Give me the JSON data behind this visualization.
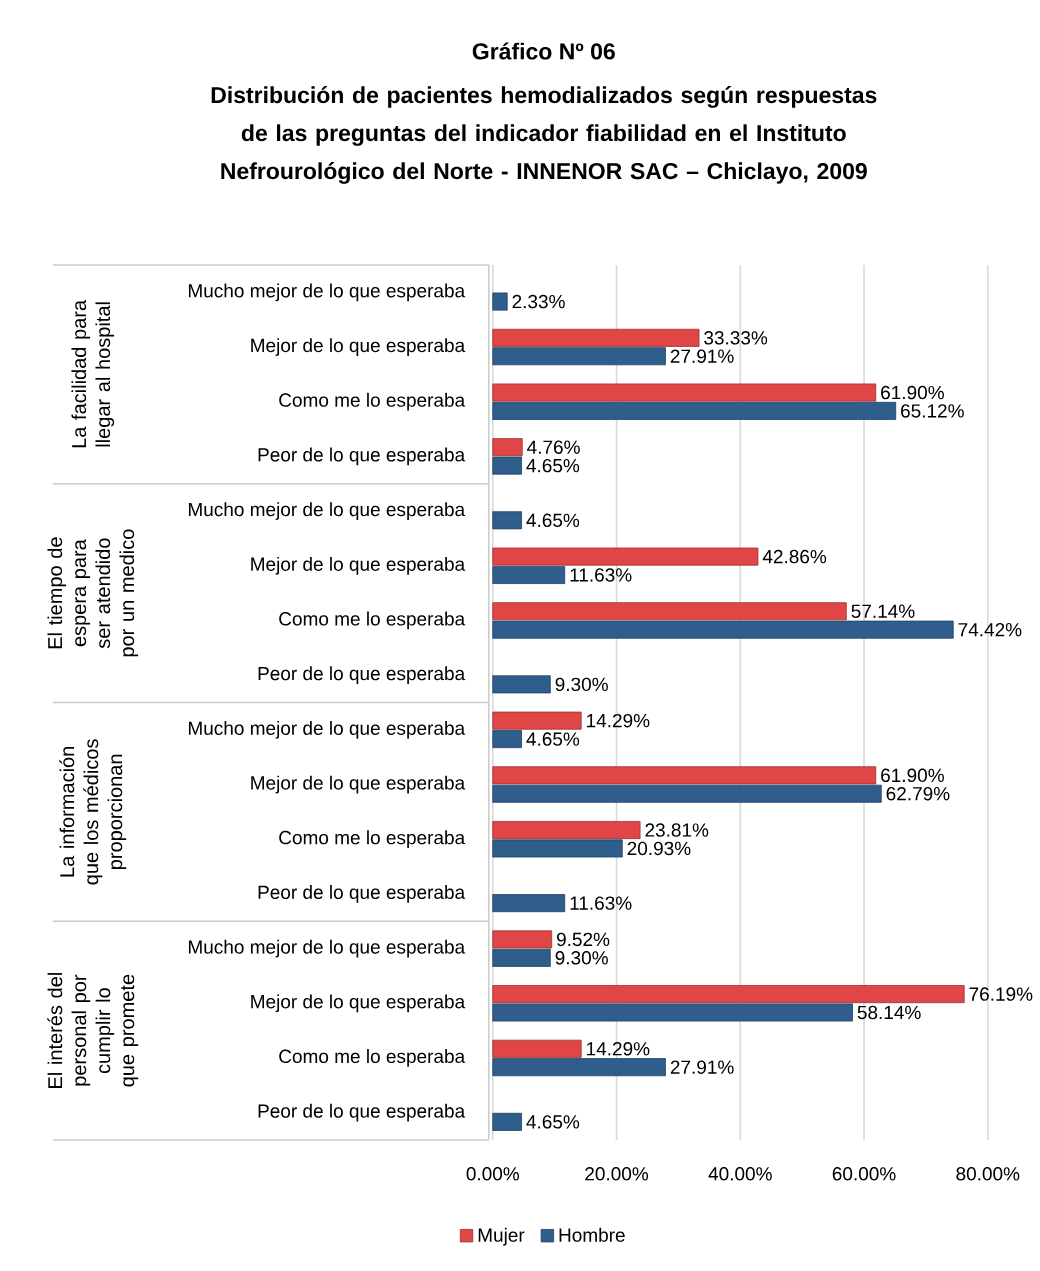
{
  "chart_data": {
    "type": "bar",
    "orientation": "horizontal",
    "title": "Gráfico Nº 06",
    "subtitle": "Distribución de pacientes hemodializados según respuestas de las preguntas del indicador fiabilidad en el Instituto Nefrourológico del Norte - INNENOR SAC – Chiclayo, 2009",
    "categories": [
      "Mucho mejor de lo que esperaba",
      "Mejor de lo que esperaba",
      "Como me lo esperaba",
      "Peor de lo que esperaba",
      "Mucho mejor de lo que esperaba",
      "Mejor de lo que esperaba",
      "Como me lo esperaba",
      "Peor de lo que esperaba",
      "Mucho mejor de lo que esperaba",
      "Mejor de lo que esperaba",
      "Como me lo esperaba",
      "Peor de lo que esperaba",
      "Mucho mejor de lo que esperaba",
      "Mejor de lo que esperaba",
      "Como me lo esperaba",
      "Peor de lo que esperaba"
    ],
    "annotations": [
      "La facilidad para llegar al hospital",
      "El tiempo de espera para ser atendido por un medico",
      "La información que los médicos proporcionan",
      "El interés del personal por cumplir lo que promete"
    ],
    "series": [
      {
        "name": "Mujer",
        "color": "#e04646",
        "values": [
          null,
          33.33,
          61.9,
          4.76,
          null,
          42.86,
          57.14,
          null,
          14.29,
          61.9,
          23.81,
          null,
          9.52,
          76.19,
          14.29,
          null
        ],
        "value_labels": [
          null,
          "33.33%",
          "61.90%",
          "4.76%",
          null,
          "42.86%",
          "57.14%",
          null,
          "14.29%",
          "61.90%",
          "23.81%",
          null,
          "9.52%",
          "76.19%",
          "14.29%",
          null
        ]
      },
      {
        "name": "Hombre",
        "color": "#2f5d8c",
        "values": [
          2.33,
          27.91,
          65.12,
          4.65,
          4.65,
          11.63,
          74.42,
          9.3,
          4.65,
          62.79,
          20.93,
          11.63,
          9.3,
          58.14,
          27.91,
          4.65
        ],
        "value_labels": [
          "2.33%",
          "27.91%",
          "65.12%",
          "4.65%",
          "4.65%",
          "11.63%",
          "74.42%",
          "9.30%",
          "4.65%",
          "62.79%",
          "20.93%",
          "11.63%",
          "9.30%",
          "58.14%",
          "27.91%",
          "4.65%"
        ]
      }
    ],
    "xlim": [
      0,
      80
    ],
    "xticks": [
      {
        "value": 0,
        "label": "0.00%"
      },
      {
        "value": 20,
        "label": "20.00%"
      },
      {
        "value": 40,
        "label": "40.00%"
      },
      {
        "value": 60,
        "label": "60.00%"
      },
      {
        "value": 80,
        "label": "80.00%"
      }
    ],
    "grid": "x",
    "legend": "bottom"
  }
}
